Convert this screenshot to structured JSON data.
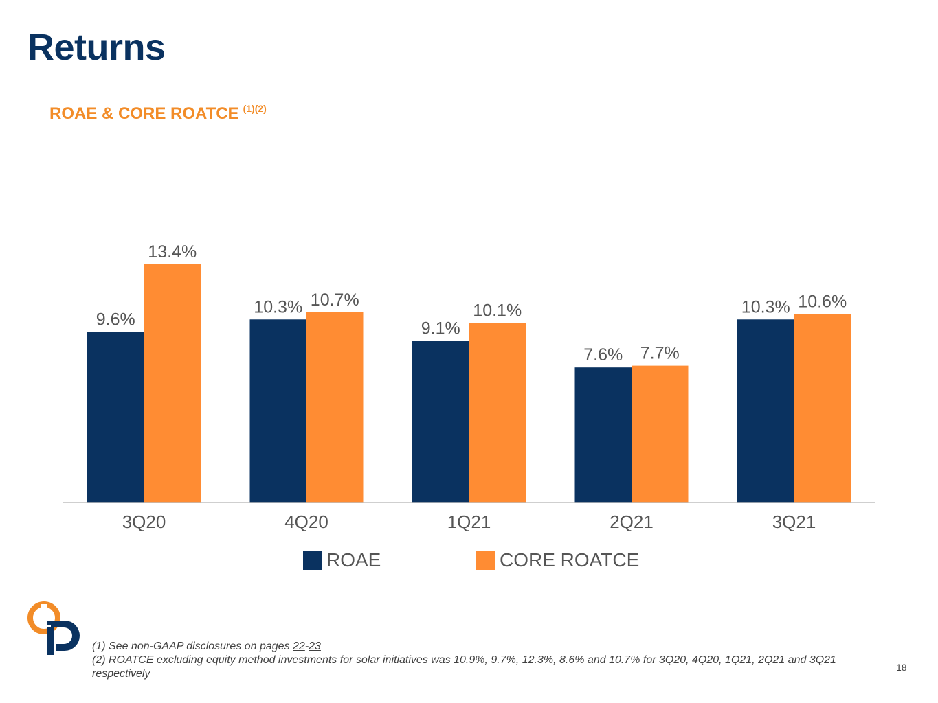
{
  "slide": {
    "title": "Returns",
    "chart_heading": "ROAE & CORE ROATCE",
    "chart_heading_sup": "(1)(2)",
    "page_number": "18"
  },
  "footnotes": {
    "note1_prefix": "(1) See non-GAAP disclosures on pages ",
    "note1_page_a": "22",
    "note1_dash": "-",
    "note1_page_b": "23",
    "note2": "(2) ROATCE excluding equity method investments for solar initiatives was 10.9%, 9.7%, 12.3%, 8.6% and 10.7% for 3Q20, 4Q20, 1Q21, 2Q21 and 3Q21 respectively"
  },
  "colors": {
    "navy": "#0a3260",
    "orange": "#ff8c33",
    "label_gray": "#555555"
  },
  "chart_data": {
    "type": "bar",
    "categories": [
      "3Q20",
      "4Q20",
      "1Q21",
      "2Q21",
      "3Q21"
    ],
    "series": [
      {
        "name": "ROAE",
        "values": [
          9.6,
          10.3,
          9.1,
          7.6,
          10.3
        ],
        "labels": [
          "9.6%",
          "10.3%",
          "9.1%",
          "7.6%",
          "10.3%"
        ],
        "color": "#0a3260"
      },
      {
        "name": "CORE ROATCE",
        "values": [
          13.4,
          10.7,
          10.1,
          7.7,
          10.6
        ],
        "labels": [
          "13.4%",
          "10.7%",
          "10.1%",
          "7.7%",
          "10.6%"
        ],
        "color": "#ff8c33"
      }
    ],
    "ylim": [
      0,
      13.4
    ],
    "grid": false,
    "legend_position": "bottom"
  }
}
